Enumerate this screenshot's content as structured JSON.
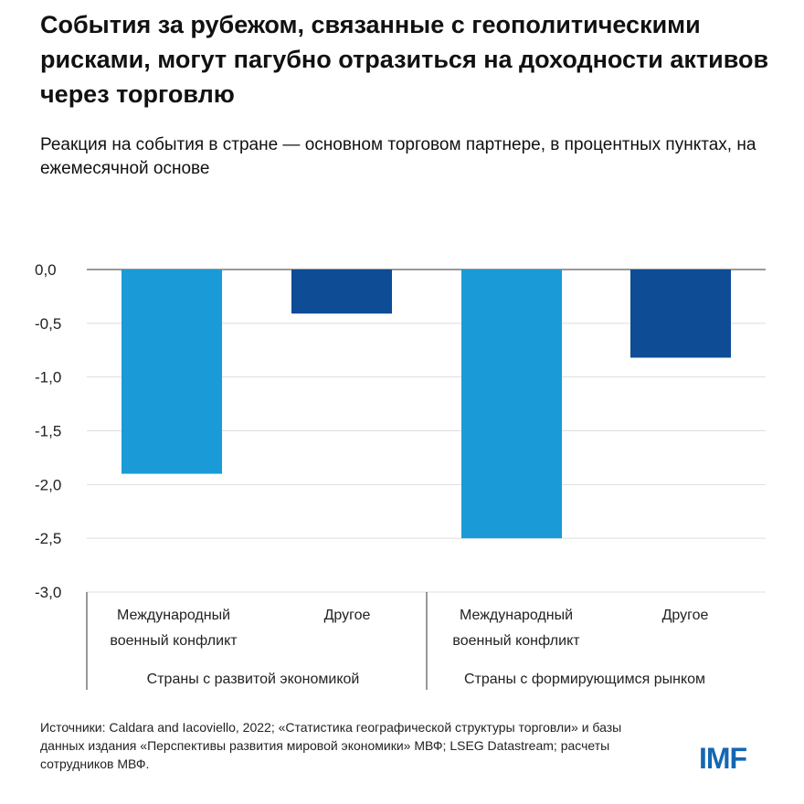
{
  "title": "События за рубежом, связанные с геополитическими рисками, могут пагубно отразиться на доходности активов через торговлю",
  "subtitle": "Реакция на события в стране — основном торговом партнере, в процентных пунктах, на ежемесячной основе",
  "source": "Источники: Caldara and Iacoviello, 2022; «Статистика географической структуры торговли» и базы данных издания «Перспективы развития мировой экономики» МВФ; LSEG Datastream; расчеты сотрудников МВФ.",
  "logo": "IMF",
  "colors": {
    "light_blue": "#1a9bd7",
    "dark_blue": "#0e4c96"
  },
  "chart_data": {
    "type": "bar",
    "ylim": [
      -3.0,
      0.0
    ],
    "yticks": [
      "0,0",
      "-0,5",
      "-1,0",
      "-1,5",
      "-2,0",
      "-2,5",
      "-3,0"
    ],
    "ytick_values": [
      0,
      -0.5,
      -1.0,
      -1.5,
      -2.0,
      -2.5,
      -3.0
    ],
    "grid": true,
    "groups": [
      {
        "label": "Страны с развитой экономикой",
        "categories": [
          {
            "line1": "Международный",
            "line2": "военный конфликт",
            "value": -1.9,
            "color": "#1a9bd7"
          },
          {
            "line1": "Другое",
            "line2": "",
            "value": -0.41,
            "color": "#0e4c96"
          }
        ]
      },
      {
        "label": "Страны с формирующимся рынком",
        "categories": [
          {
            "line1": "Международный",
            "line2": "военный конфликт",
            "value": -2.5,
            "color": "#1a9bd7"
          },
          {
            "line1": "Другое",
            "line2": "",
            "value": -0.82,
            "color": "#0e4c96"
          }
        ]
      }
    ]
  }
}
